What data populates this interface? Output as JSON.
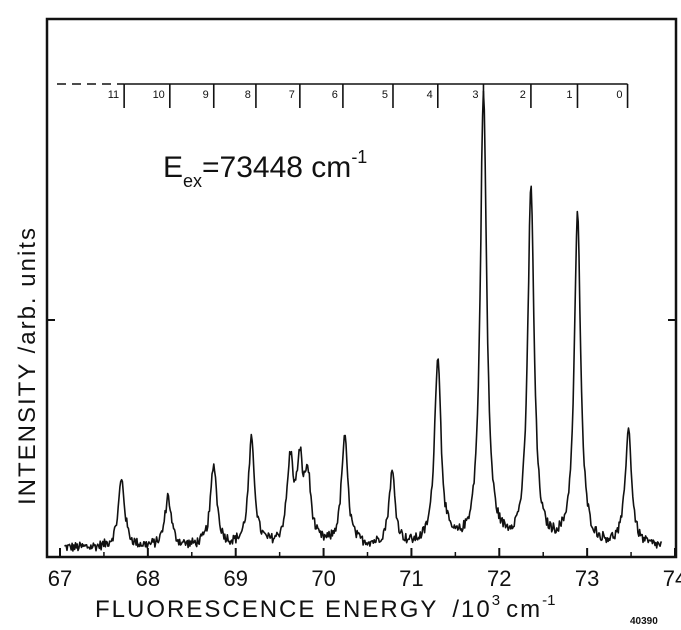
{
  "chart_data": {
    "type": "line",
    "title": "",
    "xlabel": "FLUORESCENCE  ENERGY",
    "xlabel_unit_main": "/10",
    "xlabel_unit_exp": "3",
    "xlabel_unit_tail": "cm",
    "xlabel_unit_tail_exp": "-1",
    "ylabel": "INTENSITY /arb. units",
    "xlim": [
      67,
      74
    ],
    "ylim": [
      0,
      1.0
    ],
    "x_ticks": [
      67,
      68,
      69,
      70,
      71,
      72,
      73,
      74
    ],
    "x_tick_labels": [
      "67",
      "68",
      "69",
      "70",
      "71",
      "72",
      "73",
      "74"
    ],
    "grid": false,
    "annotation": {
      "E": "E",
      "sub": "ex",
      "value": "=73448  cm",
      "sup": "-1"
    },
    "progression": {
      "labels": [
        "11",
        "10",
        "9",
        "8",
        "7",
        "6",
        "5",
        "4",
        "3",
        "2",
        "1",
        "0"
      ],
      "positions": [
        67.73,
        68.25,
        68.75,
        69.23,
        69.73,
        70.22,
        70.79,
        71.3,
        71.82,
        72.36,
        72.89,
        73.46
      ]
    },
    "baseline": 0.02,
    "peaks": [
      {
        "x": 67.7,
        "height": 0.15
      },
      {
        "x": 68.23,
        "height": 0.11
      },
      {
        "x": 68.75,
        "height": 0.18
      },
      {
        "x": 69.18,
        "height": 0.23
      },
      {
        "x": 69.62,
        "height": 0.18
      },
      {
        "x": 69.73,
        "height": 0.16
      },
      {
        "x": 69.82,
        "height": 0.14
      },
      {
        "x": 70.24,
        "height": 0.24
      },
      {
        "x": 70.78,
        "height": 0.16
      },
      {
        "x": 71.3,
        "height": 0.42
      },
      {
        "x": 71.82,
        "height": 1.0
      },
      {
        "x": 72.36,
        "height": 0.79
      },
      {
        "x": 72.89,
        "height": 0.73
      },
      {
        "x": 73.47,
        "height": 0.26
      }
    ],
    "peak_width": 0.055
  },
  "figure_number": "40390"
}
